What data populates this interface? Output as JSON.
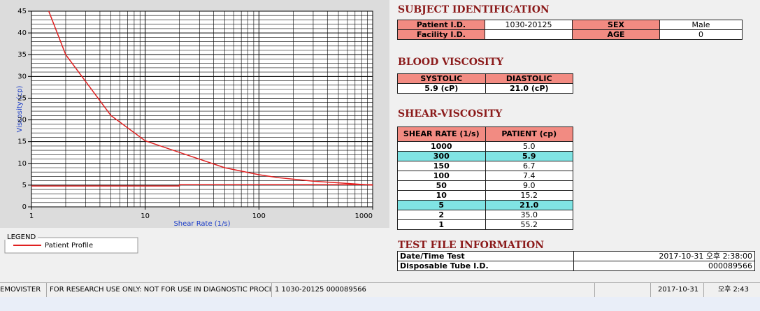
{
  "chart_data": {
    "type": "line",
    "xlabel": "Shear Rate (1/s)",
    "ylabel": "Viscosity (cp)",
    "log_x": true,
    "grid": true,
    "xlim": [
      1,
      1000
    ],
    "xticks": [
      1,
      10,
      100,
      1000
    ],
    "ylim": [
      0,
      45
    ],
    "yticks": [
      0,
      5,
      10,
      15,
      20,
      25,
      30,
      35,
      40,
      45
    ],
    "series": [
      {
        "name": "Patient Profile",
        "color": "#e02020",
        "x": [
          1,
          2,
          5,
          10,
          50,
          100,
          150,
          300,
          1000
        ],
        "values": [
          55.2,
          35.0,
          21.0,
          15.2,
          9.0,
          7.4,
          6.7,
          5.9,
          5.0
        ]
      },
      {
        "color": "#e02020",
        "x": [
          1,
          20,
          20,
          1000
        ],
        "values": [
          4.8,
          4.8,
          5.1,
          5.1
        ]
      }
    ],
    "legend_title": "LEGEND"
  },
  "subject": {
    "title": "SUBJECT IDENTIFICATION",
    "rows": [
      [
        "Patient I.D.",
        "1030-20125",
        "SEX",
        "Male"
      ],
      [
        "Facility I.D.",
        "AGE",
        "0"
      ]
    ]
  },
  "blood": {
    "title": "BLOOD VISCOSITY",
    "header": [
      "SYSTOLIC",
      "DIASTOLIC"
    ],
    "row": [
      "5.9 (cP)",
      "21.0 (cP)"
    ]
  },
  "shear": {
    "title": "SHEAR-VISCOSITY",
    "header": [
      "SHEAR RATE (1/s)",
      "PATIENT (cp)"
    ],
    "rows": [
      {
        "cells": [
          "1000",
          "5.0"
        ]
      },
      {
        "cells": [
          "300",
          "5.9"
        ],
        "color": "#80e4e4"
      },
      {
        "cells": [
          "150",
          "6.7"
        ]
      },
      {
        "cells": [
          "100",
          "7.4"
        ]
      },
      {
        "cells": [
          "50",
          "9.0"
        ]
      },
      {
        "cells": [
          "10",
          "15.2"
        ]
      },
      {
        "cells": [
          "5",
          "21.0"
        ],
        "color": "#80e4e4"
      },
      {
        "cells": [
          "2",
          "35.0"
        ]
      },
      {
        "cells": [
          "1",
          "55.2"
        ]
      }
    ]
  },
  "test_file": {
    "title": "TEST FILE INFORMATION",
    "rows": [
      [
        "Date/Time Test",
        "2017-10-31   오후 2:38:00"
      ],
      [
        "Disposable Tube I.D.",
        "000089566"
      ]
    ]
  },
  "status": [
    "EMOVISTER",
    "FOR RESEARCH USE ONLY: NOT FOR USE IN DIAGNOSTIC PROCEDURES",
    "1  1030-20125  000089566",
    "2017-10-31",
    "오후 2:43"
  ]
}
